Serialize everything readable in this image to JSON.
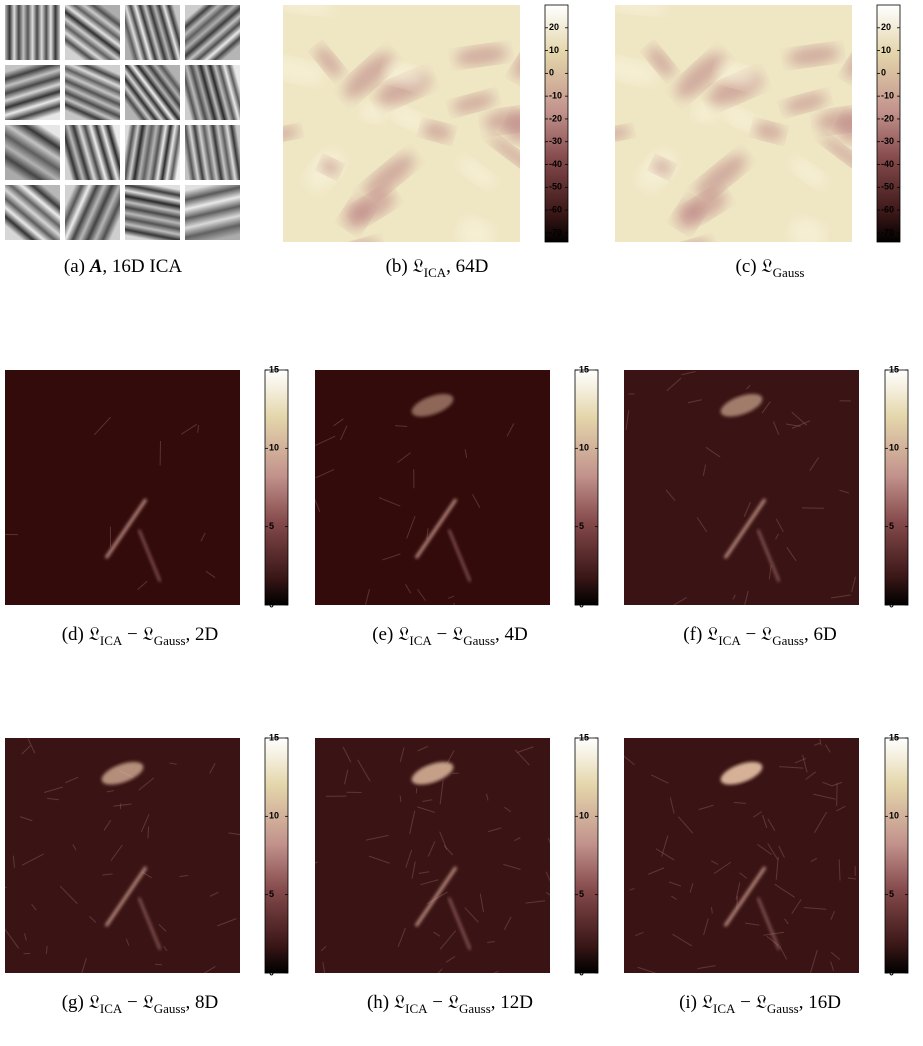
{
  "panels": [
    {
      "kind": "patches",
      "caption": [
        {
          "text": "(a) "
        },
        {
          "text": "A",
          "style": "bold-italic"
        },
        {
          "text": ", 16D ICA"
        }
      ]
    },
    {
      "kind": "likelihood",
      "colorbar": {
        "lim": [
          -74,
          30
        ],
        "ticks": [
          20,
          10,
          0,
          -10,
          -20,
          -30,
          -40,
          -50,
          -60,
          -70
        ]
      },
      "caption": [
        {
          "text": "(b) "
        },
        {
          "text": "𝔏"
        },
        {
          "text": "ICA",
          "style": "sub"
        },
        {
          "text": ", 64D"
        }
      ]
    },
    {
      "kind": "likelihood",
      "colorbar": {
        "lim": [
          -74,
          30
        ],
        "ticks": [
          20,
          10,
          0,
          -10,
          -20,
          -30,
          -40,
          -50,
          -60,
          -70
        ]
      },
      "caption": [
        {
          "text": "(c) "
        },
        {
          "text": "𝔏"
        },
        {
          "text": "Gauss",
          "style": "sub"
        }
      ]
    },
    {
      "kind": "difference",
      "colorbar": {
        "lim": [
          0,
          15
        ],
        "ticks": [
          0,
          5,
          10,
          15
        ]
      },
      "caption": [
        {
          "text": "(d) "
        },
        {
          "text": "𝔏"
        },
        {
          "text": "ICA",
          "style": "sub"
        },
        {
          "text": " − 𝔏"
        },
        {
          "text": "Gauss",
          "style": "sub"
        },
        {
          "text": ", 2D"
        }
      ]
    },
    {
      "kind": "difference",
      "colorbar": {
        "lim": [
          0,
          15
        ],
        "ticks": [
          0,
          5,
          10,
          15
        ]
      },
      "caption": [
        {
          "text": "(e) "
        },
        {
          "text": "𝔏"
        },
        {
          "text": "ICA",
          "style": "sub"
        },
        {
          "text": " − 𝔏"
        },
        {
          "text": "Gauss",
          "style": "sub"
        },
        {
          "text": ", 4D"
        }
      ]
    },
    {
      "kind": "difference",
      "colorbar": {
        "lim": [
          0,
          15
        ],
        "ticks": [
          0,
          5,
          10,
          15
        ]
      },
      "caption": [
        {
          "text": "(f) "
        },
        {
          "text": "𝔏"
        },
        {
          "text": "ICA",
          "style": "sub"
        },
        {
          "text": " − 𝔏"
        },
        {
          "text": "Gauss",
          "style": "sub"
        },
        {
          "text": ", 6D"
        }
      ]
    },
    {
      "kind": "difference",
      "colorbar": {
        "lim": [
          0,
          15
        ],
        "ticks": [
          0,
          5,
          10,
          15
        ]
      },
      "caption": [
        {
          "text": "(g) "
        },
        {
          "text": "𝔏"
        },
        {
          "text": "ICA",
          "style": "sub"
        },
        {
          "text": " − 𝔏"
        },
        {
          "text": "Gauss",
          "style": "sub"
        },
        {
          "text": ", 8D"
        }
      ]
    },
    {
      "kind": "difference",
      "colorbar": {
        "lim": [
          0,
          15
        ],
        "ticks": [
          0,
          5,
          10,
          15
        ]
      },
      "caption": [
        {
          "text": "(h) "
        },
        {
          "text": "𝔏"
        },
        {
          "text": "ICA",
          "style": "sub"
        },
        {
          "text": " − 𝔏"
        },
        {
          "text": "Gauss",
          "style": "sub"
        },
        {
          "text": ", 12D"
        }
      ]
    },
    {
      "kind": "difference",
      "colorbar": {
        "lim": [
          0,
          15
        ],
        "ticks": [
          0,
          5,
          10,
          15
        ]
      },
      "caption": [
        {
          "text": "(i) "
        },
        {
          "text": "𝔏"
        },
        {
          "text": "ICA",
          "style": "sub"
        },
        {
          "text": " − 𝔏"
        },
        {
          "text": "Gauss",
          "style": "sub"
        },
        {
          "text": ", 16D"
        }
      ]
    }
  ]
}
